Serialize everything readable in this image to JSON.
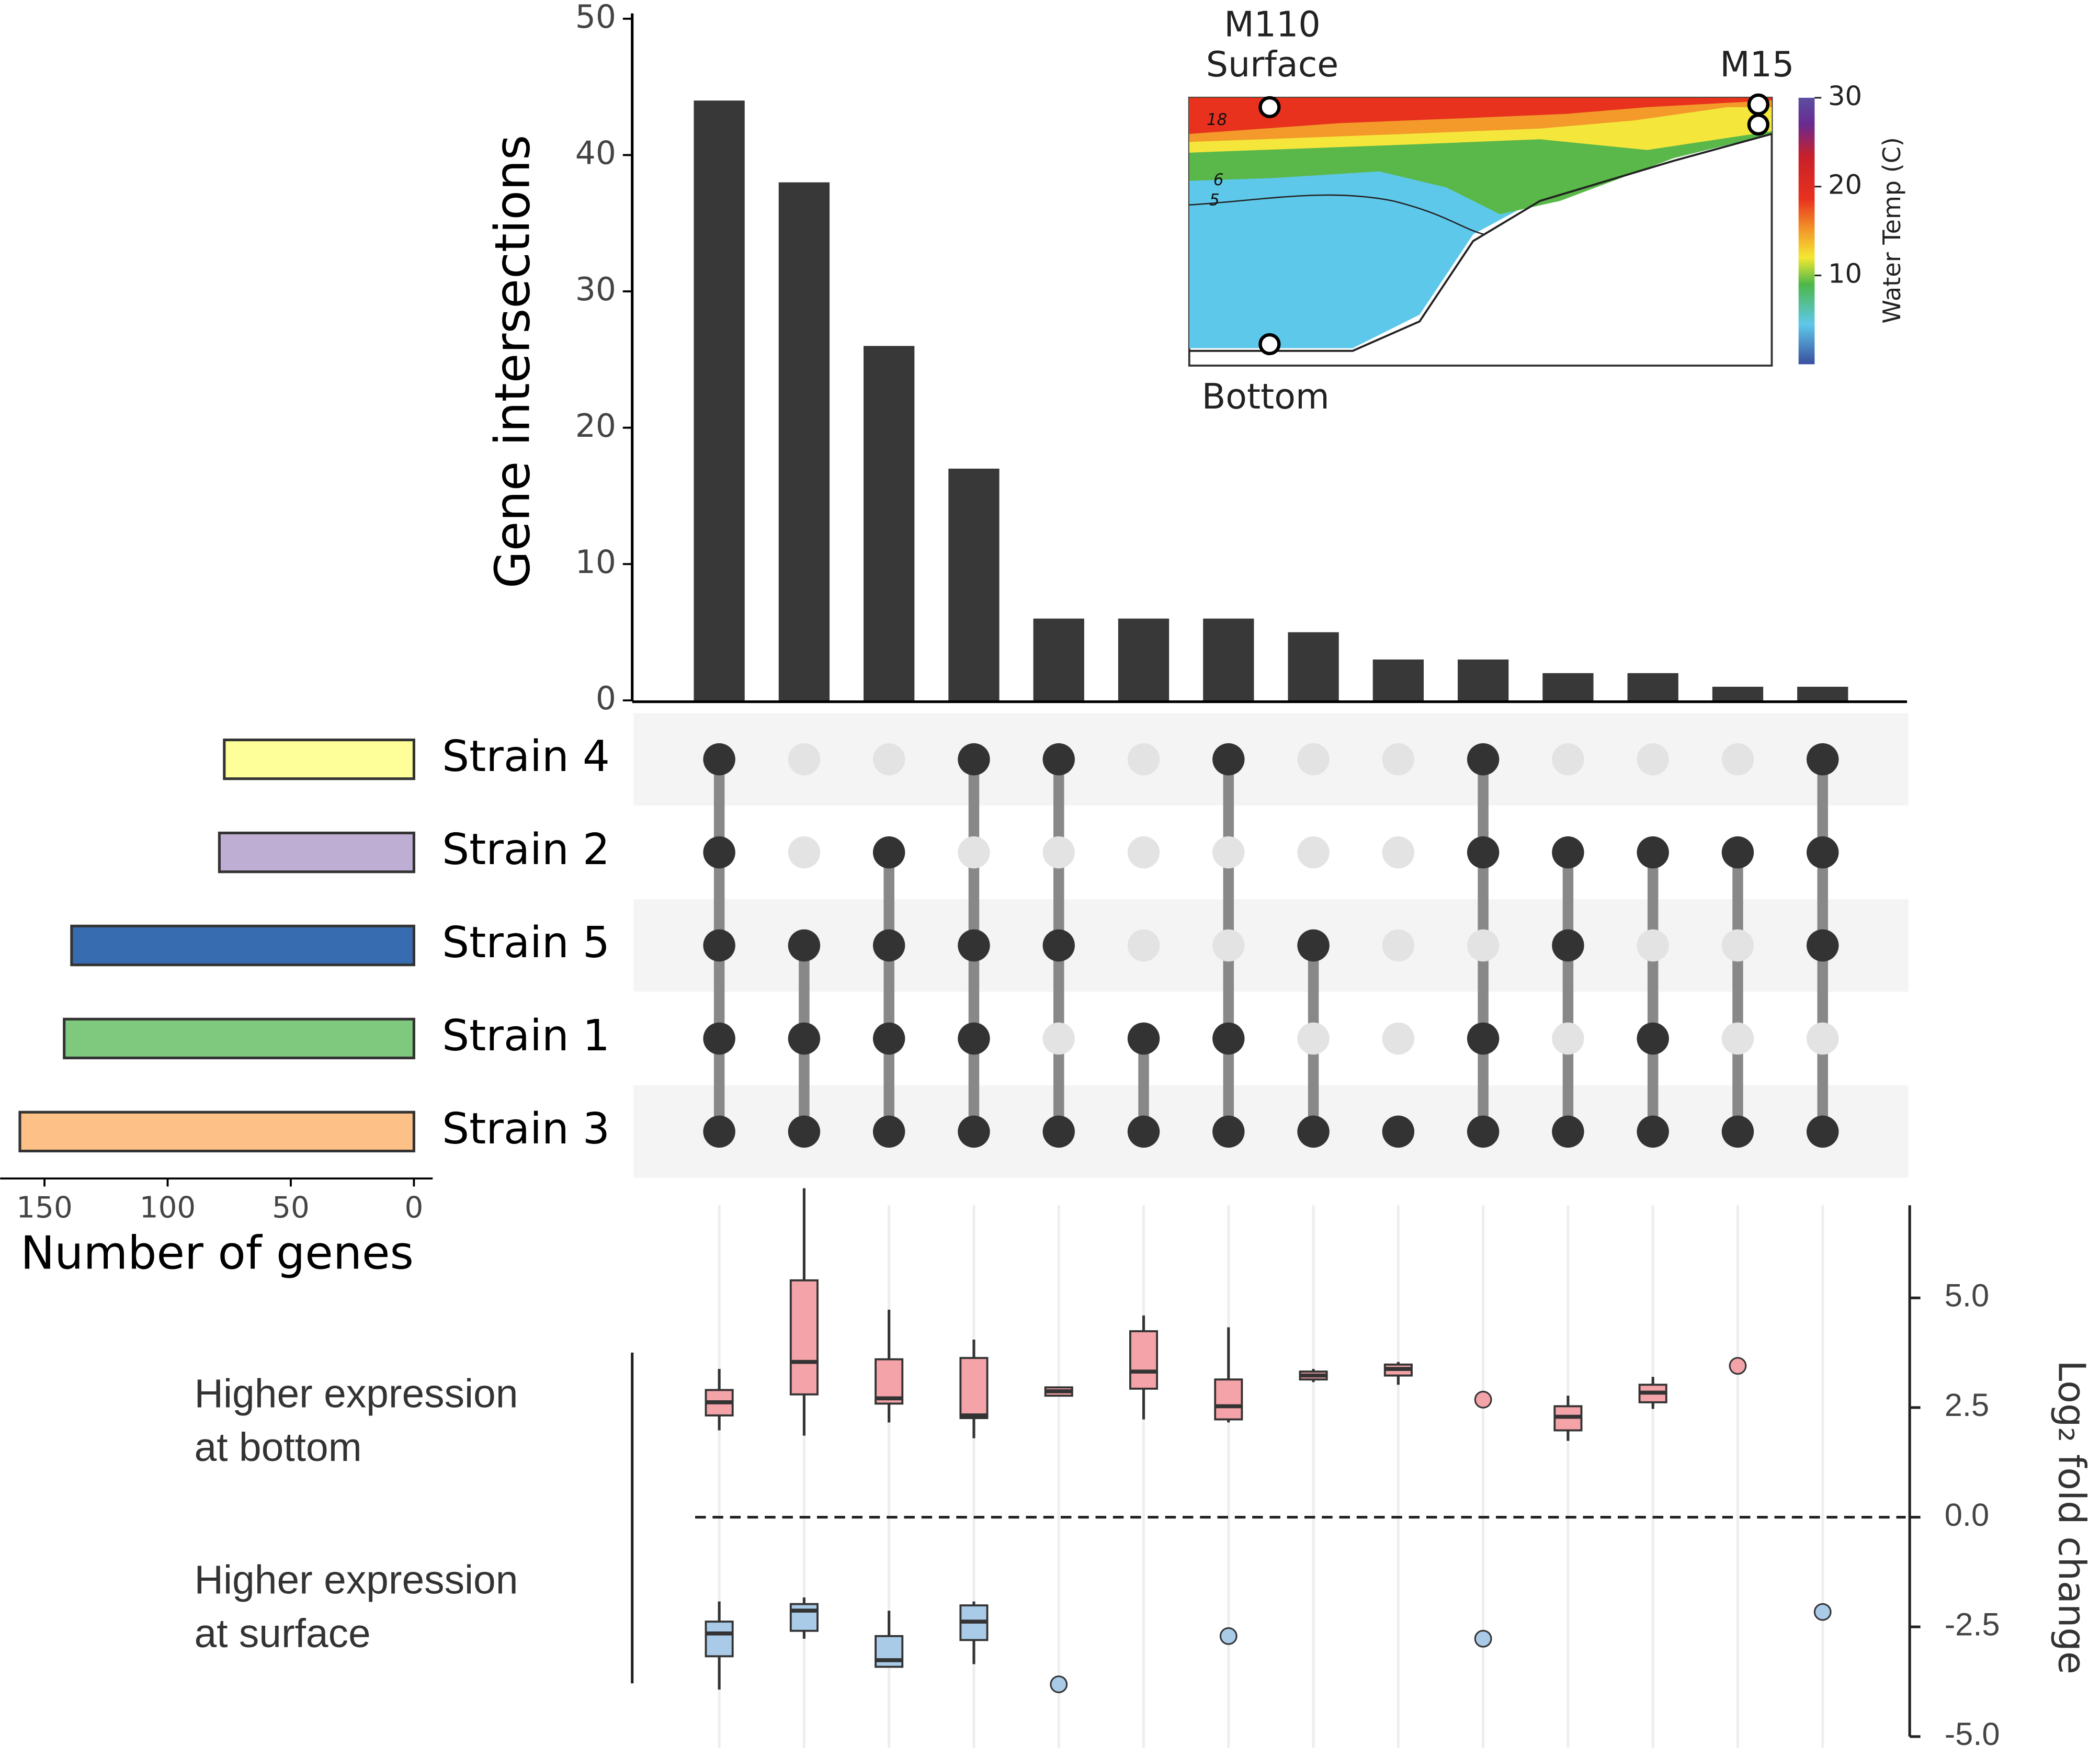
{
  "chart_data": [
    {
      "type": "bar",
      "ylabel": "Gene intersections",
      "values": [
        44,
        38,
        26,
        17,
        6,
        6,
        6,
        5,
        3,
        3,
        2,
        2,
        1,
        1
      ],
      "color": "#383838",
      "ylim": [
        0,
        50
      ],
      "yticks": [
        0,
        10,
        20,
        30,
        40,
        50
      ]
    },
    {
      "type": "hbar",
      "xlabel": "Number of genes",
      "categories": [
        "Strain 4",
        "Strain 2",
        "Strain 5",
        "Strain 1",
        "Strain 3"
      ],
      "values": [
        77,
        79,
        139,
        142,
        160
      ],
      "colors": [
        "#ffff99",
        "#beaed4",
        "#386cb0",
        "#7fc97f",
        "#fdc086"
      ],
      "xlim": [
        0,
        168
      ],
      "xticks": [
        0,
        50,
        100,
        150
      ]
    },
    {
      "type": "matrix",
      "membership": [
        [
          1,
          0,
          0,
          1,
          1,
          0,
          1,
          0,
          0,
          1,
          0,
          0,
          0,
          1
        ],
        [
          1,
          0,
          1,
          0,
          0,
          0,
          0,
          0,
          0,
          1,
          1,
          1,
          1,
          1
        ],
        [
          1,
          1,
          1,
          1,
          1,
          0,
          0,
          1,
          0,
          0,
          1,
          0,
          0,
          1
        ],
        [
          1,
          1,
          1,
          1,
          0,
          1,
          1,
          0,
          0,
          1,
          0,
          1,
          0,
          0
        ],
        [
          1,
          1,
          1,
          1,
          1,
          1,
          1,
          1,
          1,
          1,
          1,
          1,
          1,
          1
        ]
      ]
    },
    {
      "type": "box",
      "ylabel": "Log₂ fold change",
      "ylim": [
        -5.1,
        7.6
      ],
      "yticks": [
        {
          "value": -5,
          "label": "-5.0"
        },
        {
          "value": -2.5,
          "label": "-2.5"
        },
        {
          "value": 0,
          "label": "0.0"
        },
        {
          "value": 2.5,
          "label": "2.5"
        },
        {
          "value": 5,
          "label": "5.0"
        }
      ],
      "hline": 0,
      "series": [
        {
          "label": [
            "Higher expression",
            "at bottom"
          ],
          "color": "#f4a3a8",
          "boxes": [
            [
              1.98,
              2.32,
              2.62,
              2.9,
              3.38
            ],
            [
              1.86,
              2.8,
              3.54,
              5.4,
              7.5
            ],
            [
              2.16,
              2.59,
              2.71,
              3.6,
              4.73
            ],
            [
              1.8,
              2.26,
              2.32,
              3.63,
              4.05
            ],
            [
              2.77,
              2.77,
              2.87,
              2.96,
              2.96
            ],
            [
              2.23,
              2.93,
              3.32,
              4.24,
              4.6
            ],
            [
              2.16,
              2.23,
              2.53,
              3.14,
              4.33
            ],
            [
              3.08,
              3.14,
              3.23,
              3.32,
              3.38
            ],
            [
              3.02,
              3.23,
              3.38,
              3.48,
              3.54
            ],
            2.68,
            [
              1.74,
              1.98,
              2.29,
              2.53,
              2.77
            ],
            [
              2.47,
              2.62,
              2.84,
              3.02,
              3.2
            ],
            3.45,
            null
          ]
        },
        {
          "label": [
            "Higher expression",
            "at surface"
          ],
          "color": "#a9cbe8",
          "boxes": [
            [
              -3.93,
              -3.17,
              -2.65,
              -2.38,
              -1.92
            ],
            [
              -2.77,
              -2.59,
              -2.13,
              -1.98,
              -1.83
            ],
            [
              -3.41,
              -3.41,
              -3.26,
              -2.71,
              -2.13
            ],
            [
              -3.35,
              -2.8,
              -2.38,
              -2.01,
              -1.92
            ],
            -3.81,
            null,
            -2.71,
            null,
            null,
            -2.77,
            null,
            null,
            null,
            -2.16
          ]
        }
      ]
    },
    {
      "type": "section-inset",
      "labels": [
        "M110",
        "Surface",
        "M15",
        "Bottom"
      ],
      "colorbar_label": "Water Temp (C)",
      "clim": [
        0,
        30
      ],
      "cticks": [
        10,
        20,
        30
      ],
      "contour_labels": [
        "18",
        "6",
        "5"
      ]
    }
  ]
}
